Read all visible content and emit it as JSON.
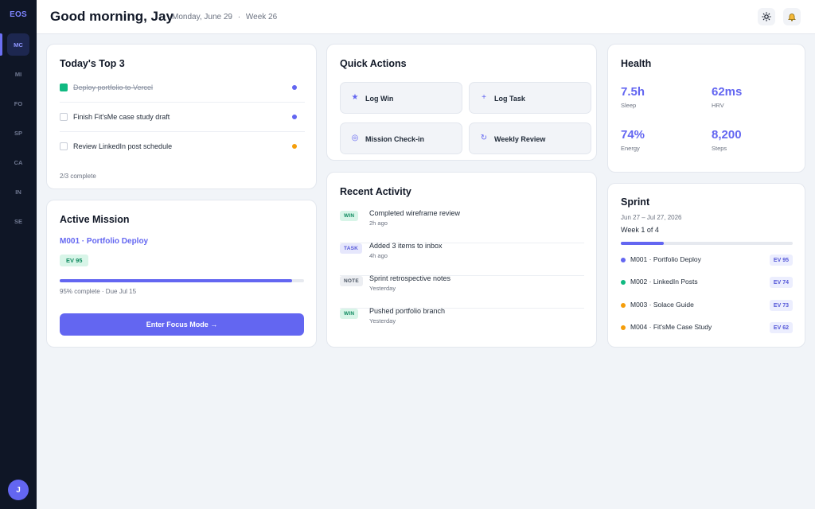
{
  "sidebar": {
    "logo": "EOS",
    "items": [
      {
        "label": "MC",
        "active": true
      },
      {
        "label": "MI"
      },
      {
        "label": "FO"
      },
      {
        "label": "SP"
      },
      {
        "label": "CA"
      },
      {
        "label": "IN"
      },
      {
        "label": "SE"
      }
    ],
    "avatar_initial": "J"
  },
  "header": {
    "greeting": "Good morning, Jay",
    "date": "Monday, June 29",
    "separator": "·",
    "week": "Week 26",
    "icons": [
      "sun-icon",
      "bell-icon"
    ]
  },
  "top3": {
    "title": "Today's Top 3",
    "tasks": [
      {
        "label": "Deploy portfolio to Vercel",
        "done": true,
        "priority_color": "#6366f1"
      },
      {
        "label": "Finish Fit'sMe case study draft",
        "done": false,
        "priority_color": "#6366f1"
      },
      {
        "label": "Review LinkedIn post schedule",
        "done": false,
        "priority_color": "#f59e0b"
      }
    ],
    "summary": "2/3 complete"
  },
  "mission": {
    "title": "Active Mission",
    "name": "M001 · Portfolio Deploy",
    "ev": "EV 95",
    "progress": 0.95,
    "status": "95% complete · Due Jul 15",
    "button": "Enter Focus Mode →"
  },
  "quick_actions": {
    "title": "Quick Actions",
    "items": [
      {
        "label": "Log Win",
        "icon": "star-icon",
        "glyph": "★"
      },
      {
        "label": "Log Task",
        "icon": "plus-icon",
        "glyph": "+"
      },
      {
        "label": "Mission Check-in",
        "icon": "target-icon",
        "glyph": "◎"
      },
      {
        "label": "Weekly Review",
        "icon": "refresh-icon",
        "glyph": "↻"
      }
    ]
  },
  "activity": {
    "title": "Recent Activity",
    "items": [
      {
        "tag": "WIN",
        "title": "Completed wireframe review",
        "time": "2h ago",
        "tag_bg": "#d8f5e8",
        "tag_fg": "#0f8a5f"
      },
      {
        "tag": "TASK",
        "title": "Added 3 items to inbox",
        "time": "4h ago",
        "tag_bg": "#e6e7fc",
        "tag_fg": "#5457d8"
      },
      {
        "tag": "NOTE",
        "title": "Sprint retrospective notes",
        "time": "Yesterday",
        "tag_bg": "#eceef2",
        "tag_fg": "#4b5563"
      },
      {
        "tag": "WIN",
        "title": "Pushed portfolio branch",
        "time": "Yesterday",
        "tag_bg": "#d8f5e8",
        "tag_fg": "#0f8a5f"
      }
    ]
  },
  "health": {
    "title": "Health",
    "metrics": [
      {
        "value": "7.5h",
        "label": "Sleep"
      },
      {
        "value": "62ms",
        "label": "HRV"
      },
      {
        "value": "74%",
        "label": "Energy"
      },
      {
        "value": "8,200",
        "label": "Steps"
      }
    ]
  },
  "sprint": {
    "title": "Sprint",
    "range": "Jun 27 – Jul 27, 2026",
    "week": "Week 1 of 4",
    "progress": 0.25,
    "items": [
      {
        "label": "M001 · Portfolio Deploy",
        "ev": "EV 95",
        "color": "#6366f1"
      },
      {
        "label": "M002 · LinkedIn Posts",
        "ev": "EV 74",
        "color": "#10b981"
      },
      {
        "label": "M003 · Solace Guide",
        "ev": "EV 73",
        "color": "#f59e0b"
      },
      {
        "label": "M004 · Fit'sMe Case Study",
        "ev": "EV 62",
        "color": "#f59e0b"
      }
    ]
  },
  "colors": {
    "accent": "#6366f1",
    "sidebar_bg": "#0f1626",
    "page_bg": "#f1f4f8",
    "success": "#10b981",
    "warning": "#f59e0b"
  }
}
